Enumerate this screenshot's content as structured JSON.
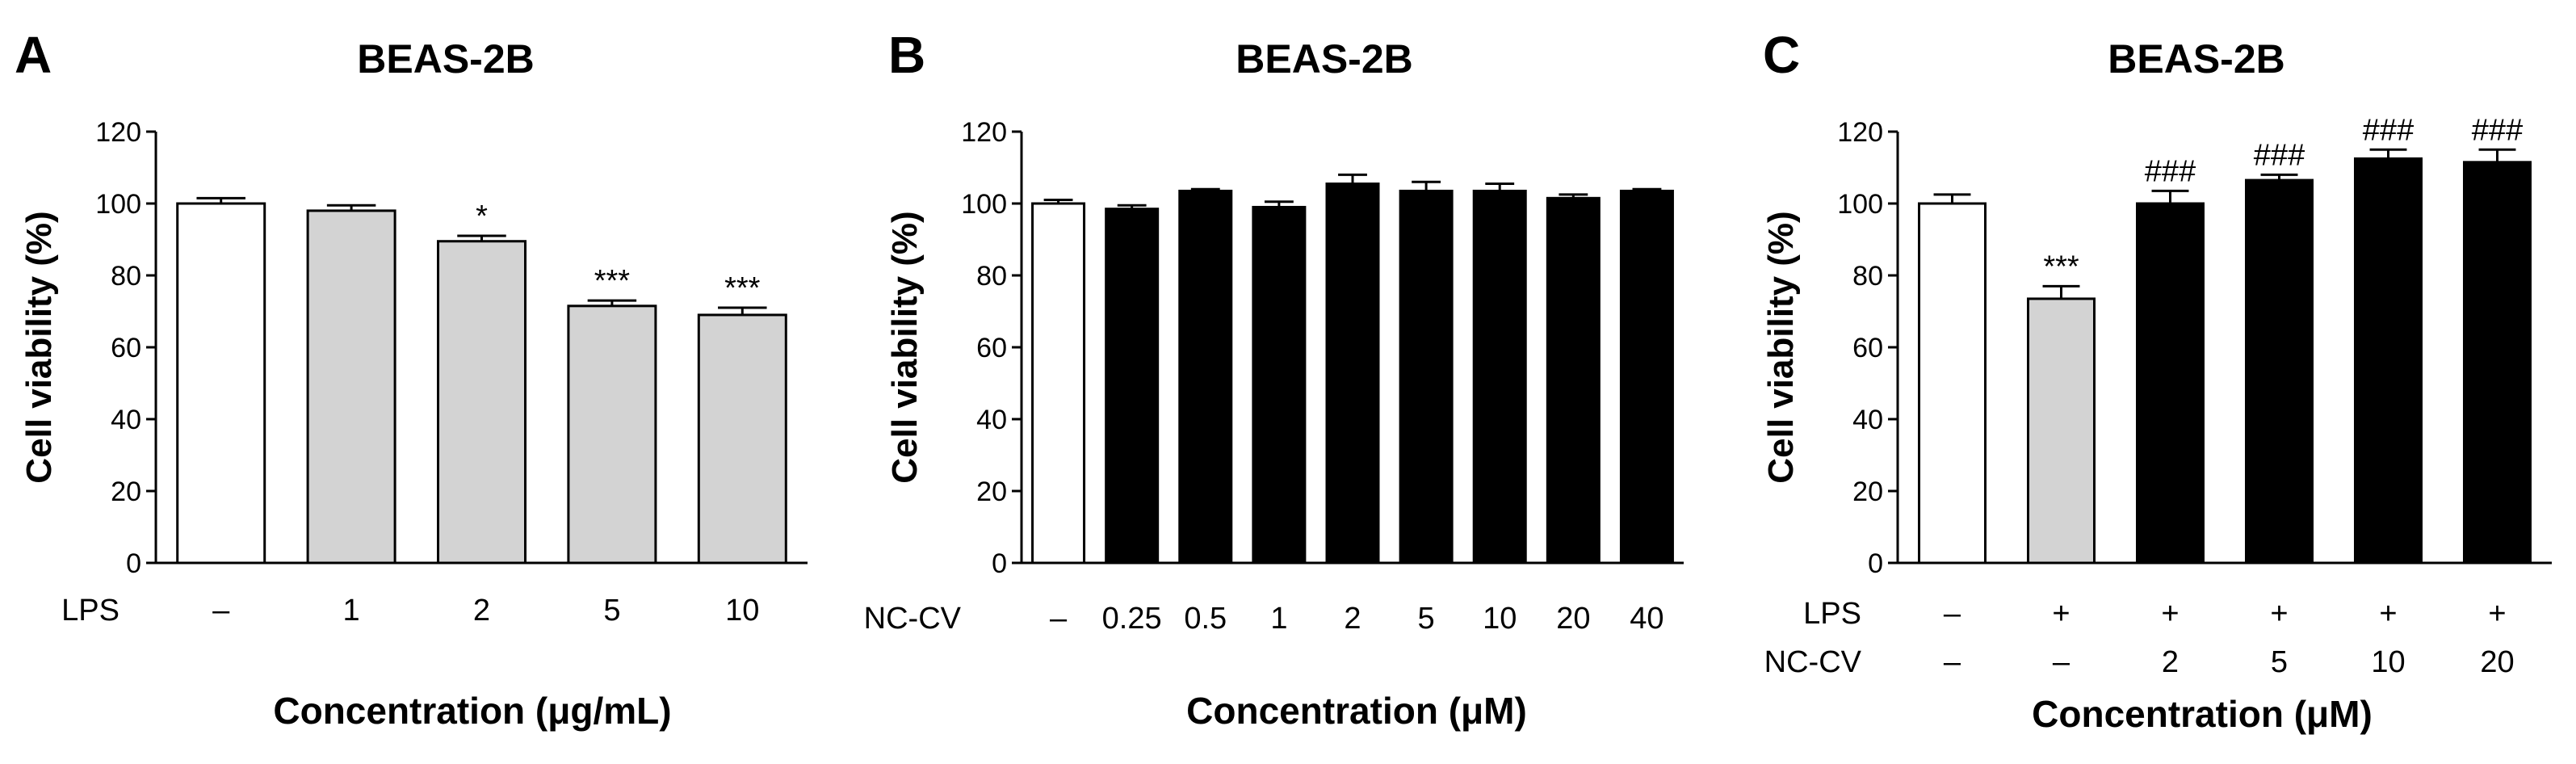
{
  "chart_data": [
    {
      "type": "bar",
      "panel": "A",
      "title": "BEAS-2B",
      "ylabel": "Cell viability (%)",
      "xlabel": "Concentration (μg/mL)",
      "ylim": [
        0,
        120
      ],
      "yticks": [
        "0",
        "20",
        "40",
        "60",
        "80",
        "100",
        "120"
      ],
      "treatment_rows": [
        {
          "label": "LPS",
          "values": [
            "–",
            "1",
            "2",
            "5",
            "10"
          ]
        }
      ],
      "values": [
        100,
        98,
        89.5,
        71.5,
        69
      ],
      "errors": [
        1.5,
        1.5,
        1.5,
        1.5,
        2
      ],
      "fills": [
        "#ffffff",
        "#d3d3d3",
        "#d3d3d3",
        "#d3d3d3",
        "#d3d3d3"
      ],
      "annotations": [
        "",
        "",
        "*",
        "***",
        "***"
      ]
    },
    {
      "type": "bar",
      "panel": "B",
      "title": "BEAS-2B",
      "ylabel": "Cell viability (%)",
      "xlabel": "Concentration (μM)",
      "ylim": [
        0,
        120
      ],
      "yticks": [
        "0",
        "20",
        "40",
        "60",
        "80",
        "100",
        "120"
      ],
      "treatment_rows": [
        {
          "label": "NC-CV",
          "values": [
            "–",
            "0.25",
            "0.5",
            "1",
            "2",
            "5",
            "10",
            "20",
            "40"
          ]
        }
      ],
      "values": [
        100,
        98.5,
        103.5,
        99,
        105.5,
        103.5,
        103.5,
        101.5,
        103.5
      ],
      "errors": [
        1,
        1,
        0.5,
        1.5,
        2.5,
        2.5,
        2,
        1,
        0.5
      ],
      "fills": [
        "#ffffff",
        "#000000",
        "#000000",
        "#000000",
        "#000000",
        "#000000",
        "#000000",
        "#000000",
        "#000000"
      ],
      "annotations": [
        "",
        "",
        "",
        "",
        "",
        "",
        "",
        "",
        ""
      ]
    },
    {
      "type": "bar",
      "panel": "C",
      "title": "BEAS-2B",
      "ylabel": "Cell viability (%)",
      "xlabel": "Concentration (μM)",
      "ylim": [
        0,
        120
      ],
      "yticks": [
        "0",
        "20",
        "40",
        "60",
        "80",
        "100",
        "120"
      ],
      "treatment_rows": [
        {
          "label": "LPS",
          "values": [
            "–",
            "+",
            "+",
            "+",
            "+",
            "+"
          ]
        },
        {
          "label": "NC-CV",
          "values": [
            "–",
            "–",
            "2",
            "5",
            "10",
            "20"
          ]
        }
      ],
      "values": [
        100,
        73.5,
        100,
        106.5,
        112.5,
        111.5
      ],
      "errors": [
        2.5,
        3.5,
        3.5,
        1.5,
        2.5,
        3.5
      ],
      "fills": [
        "#ffffff",
        "#d3d3d3",
        "#000000",
        "#000000",
        "#000000",
        "#000000"
      ],
      "annotations": [
        "",
        "***",
        "###",
        "###",
        "###",
        "###"
      ]
    }
  ]
}
